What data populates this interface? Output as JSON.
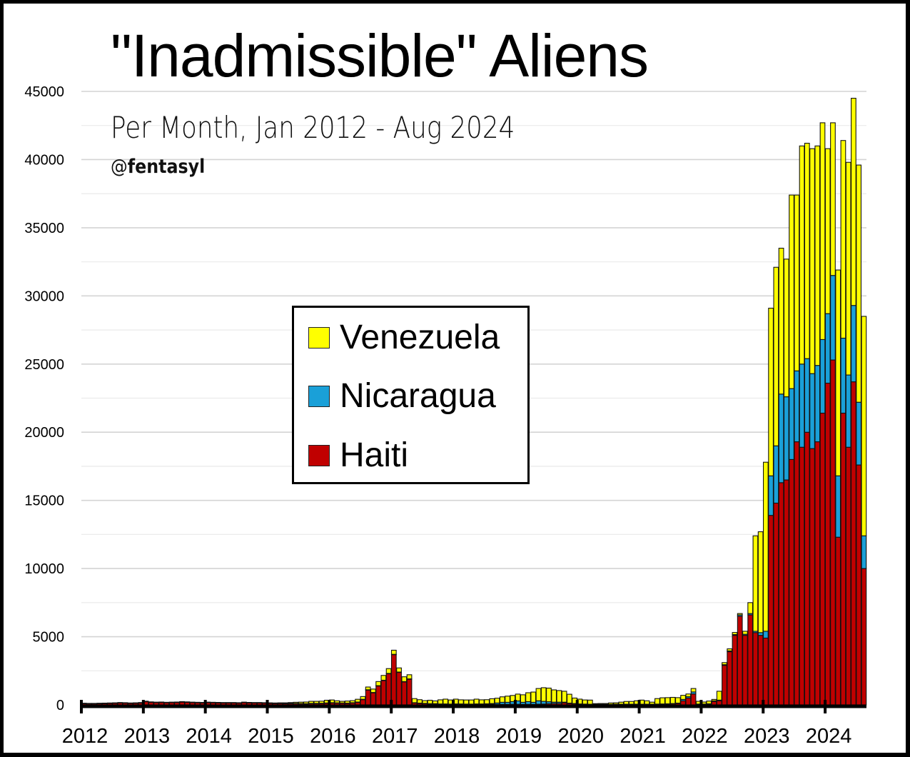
{
  "header": {
    "title": "\"Inadmissible\" Aliens",
    "subtitle": "Per Month, Jan 2012 - Aug 2024",
    "handle_at": "@",
    "handle_name": "fentasyl"
  },
  "legend": {
    "items": [
      {
        "label": "Venezuela",
        "color": "#FFFF00"
      },
      {
        "label": "Nicaragua",
        "color": "#1AA0D8"
      },
      {
        "label": "Haiti",
        "color": "#C00000"
      }
    ]
  },
  "colors": {
    "venezuela": "#FFFF00",
    "nicaragua": "#1AA0D8",
    "haiti": "#C00000",
    "gridline": "#d9d9d9",
    "axis": "#000000"
  },
  "chart_data": {
    "type": "bar",
    "stacked": true,
    "title": "\"Inadmissible\" Aliens",
    "subtitle": "Per Month, Jan 2012 - Aug 2024",
    "xlabel": "",
    "ylabel": "",
    "ylim": [
      0,
      45000
    ],
    "yticks": [
      0,
      5000,
      10000,
      15000,
      20000,
      25000,
      30000,
      35000,
      40000,
      45000
    ],
    "grid": true,
    "minor_grid_step": 2500,
    "legend_position": "center-left inside plot",
    "x_tick_labels": [
      "2012",
      "2013",
      "2014",
      "2015",
      "2016",
      "2017",
      "2018",
      "2019",
      "2020",
      "2021",
      "2022",
      "2023",
      "2024"
    ],
    "start": "2012-01",
    "end": "2024-08",
    "months": 152,
    "series": [
      {
        "name": "Haiti",
        "values": [
          100,
          90,
          90,
          100,
          110,
          120,
          130,
          150,
          140,
          120,
          130,
          150,
          250,
          200,
          180,
          190,
          170,
          180,
          190,
          220,
          200,
          180,
          170,
          160,
          180,
          170,
          160,
          150,
          150,
          150,
          140,
          180,
          160,
          150,
          150,
          140,
          120,
          110,
          110,
          100,
          100,
          100,
          90,
          80,
          100,
          100,
          110,
          130,
          150,
          140,
          130,
          120,
          150,
          200,
          400,
          1100,
          900,
          1400,
          1800,
          2300,
          3700,
          2400,
          1700,
          1900,
          150,
          120,
          100,
          80,
          80,
          60,
          60,
          50,
          50,
          50,
          40,
          40,
          40,
          40,
          40,
          40,
          40,
          40,
          40,
          40,
          40,
          40,
          40,
          40,
          50,
          60,
          80,
          100,
          100,
          150,
          100,
          80,
          60,
          50,
          40,
          30,
          30,
          30,
          30,
          40,
          40,
          40,
          40,
          40,
          40,
          40,
          40,
          50,
          60,
          60,
          80,
          100,
          300,
          500,
          800,
          50,
          50,
          60,
          250,
          300,
          2900,
          3900,
          5100,
          6500,
          5100,
          6600,
          5300,
          5100,
          4900,
          13900,
          14800,
          16300,
          16500,
          18000,
          19300,
          18900,
          20000,
          18800,
          19300,
          21400,
          23600,
          25300,
          12300,
          21400,
          18900,
          23700,
          17600,
          10000
        ]
      },
      {
        "name": "Nicaragua",
        "values": [
          10,
          10,
          10,
          10,
          10,
          10,
          10,
          10,
          10,
          10,
          10,
          10,
          10,
          10,
          10,
          10,
          10,
          10,
          10,
          10,
          10,
          10,
          10,
          10,
          10,
          10,
          10,
          10,
          10,
          10,
          10,
          10,
          10,
          10,
          10,
          10,
          10,
          10,
          10,
          10,
          10,
          10,
          10,
          10,
          10,
          10,
          10,
          10,
          10,
          10,
          10,
          10,
          10,
          10,
          10,
          10,
          10,
          10,
          10,
          10,
          10,
          10,
          10,
          10,
          10,
          10,
          10,
          10,
          10,
          10,
          10,
          10,
          20,
          20,
          20,
          20,
          30,
          30,
          40,
          60,
          100,
          150,
          150,
          200,
          250,
          150,
          200,
          150,
          250,
          200,
          150,
          100,
          100,
          50,
          30,
          20,
          10,
          10,
          10,
          10,
          10,
          10,
          10,
          10,
          10,
          10,
          10,
          10,
          10,
          10,
          10,
          10,
          10,
          20,
          20,
          30,
          100,
          100,
          150,
          10,
          10,
          20,
          50,
          50,
          50,
          60,
          60,
          100,
          80,
          100,
          100,
          200,
          500,
          2900,
          4200,
          6500,
          6100,
          5200,
          5200,
          6100,
          5400,
          5500,
          5600,
          5400,
          5100,
          6200,
          4500,
          5500,
          5300,
          5600,
          4600,
          2400
        ]
      },
      {
        "name": "Venezuela",
        "values": [
          10,
          10,
          10,
          10,
          10,
          10,
          10,
          10,
          10,
          10,
          10,
          10,
          10,
          10,
          10,
          10,
          10,
          10,
          10,
          10,
          10,
          10,
          10,
          10,
          10,
          10,
          10,
          10,
          10,
          10,
          10,
          10,
          10,
          10,
          10,
          10,
          20,
          20,
          30,
          40,
          60,
          80,
          100,
          120,
          150,
          150,
          150,
          200,
          200,
          150,
          120,
          150,
          150,
          200,
          200,
          200,
          250,
          300,
          350,
          350,
          300,
          300,
          350,
          300,
          300,
          250,
          200,
          250,
          200,
          300,
          350,
          300,
          350,
          300,
          300,
          300,
          350,
          300,
          300,
          350,
          350,
          400,
          450,
          450,
          500,
          550,
          650,
          750,
          900,
          1000,
          1000,
          900,
          850,
          800,
          650,
          400,
          350,
          300,
          300,
          50,
          60,
          60,
          100,
          100,
          150,
          200,
          200,
          250,
          300,
          250,
          150,
          400,
          450,
          450,
          450,
          400,
          300,
          200,
          250,
          200,
          150,
          200,
          100,
          650,
          150,
          150,
          150,
          100,
          220,
          800,
          7000,
          7400,
          12400,
          12300,
          13100,
          10700,
          10100,
          14200,
          12900,
          16000,
          15800,
          16500,
          16100,
          15900,
          12100,
          11200,
          15100,
          14500,
          15600,
          15200,
          17400,
          16100
        ]
      }
    ]
  }
}
